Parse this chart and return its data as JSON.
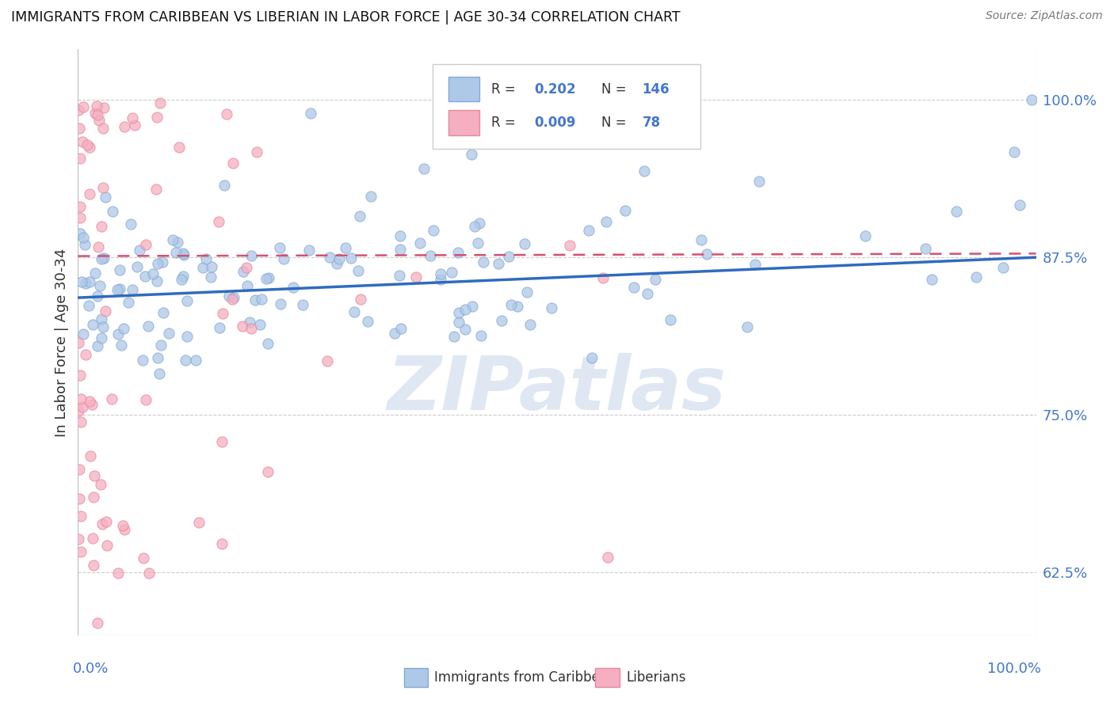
{
  "title": "IMMIGRANTS FROM CARIBBEAN VS LIBERIAN IN LABOR FORCE | AGE 30-34 CORRELATION CHART",
  "source": "Source: ZipAtlas.com",
  "ylabel": "In Labor Force | Age 30-34",
  "ytick_vals": [
    0.625,
    0.75,
    0.875,
    1.0
  ],
  "ytick_labels": [
    "62.5%",
    "75.0%",
    "87.5%",
    "100.0%"
  ],
  "xlim": [
    0.0,
    1.0
  ],
  "ylim": [
    0.575,
    1.04
  ],
  "blue_scatter_color": "#aec8e8",
  "blue_scatter_edge": "#85aad4",
  "pink_scatter_color": "#f5afc0",
  "pink_scatter_edge": "#e888a0",
  "blue_line_color": "#2f6bbf",
  "pink_line_color": "#d45070",
  "grid_color": "#cccccc",
  "tick_label_color": "#4477cc",
  "ylabel_color": "#333333",
  "title_color": "#111111",
  "source_color": "#777777",
  "watermark_text": "ZIPatlas",
  "watermark_color": "#c8d8ea",
  "legend_label_blue": "Immigrants from Caribbean",
  "legend_label_pink": "Liberians",
  "legend_r1": "0.202",
  "legend_n1": "146",
  "legend_r2": "0.009",
  "legend_n2": "78"
}
